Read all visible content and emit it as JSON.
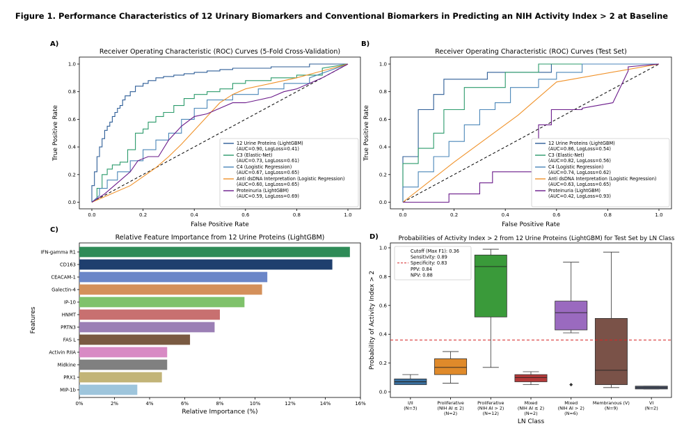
{
  "figure": {
    "title": "Figure 1. Performance Characteristics of 12 Urinary Biomarkers and Conventional Biomarkers in Predicting an NIH Activity Index > 2 at Baseline"
  },
  "chart_data": [
    {
      "type": "line",
      "panel": "A)",
      "title": "Receiver Operating Characteristic (ROC) Curves (5-Fold Cross-Validation)",
      "xlabel": "False Positive Rate",
      "ylabel": "True Positive Rate",
      "xlim": [
        0,
        1
      ],
      "ylim": [
        0,
        1
      ],
      "xticks": [
        "0.0",
        "0.2",
        "0.4",
        "0.6",
        "0.8",
        "1.0"
      ],
      "yticks": [
        "0.0",
        "0.2",
        "0.4",
        "0.6",
        "0.8",
        "1.0"
      ],
      "legend_position": "lower-right",
      "series": [
        {
          "name": "12 Urine Proteins (LightGBM)",
          "legend": [
            "12 Urine Proteins (LightGBM)",
            "(AUC=0.90, LogLoss=0.41)"
          ],
          "color": "#2c5c96",
          "x": [
            0,
            0,
            0.01,
            0.01,
            0.02,
            0.02,
            0.03,
            0.03,
            0.04,
            0.04,
            0.05,
            0.05,
            0.06,
            0.06,
            0.07,
            0.07,
            0.08,
            0.08,
            0.09,
            0.09,
            0.1,
            0.1,
            0.11,
            0.11,
            0.12,
            0.12,
            0.13,
            0.13,
            0.15,
            0.15,
            0.17,
            0.17,
            0.2,
            0.2,
            0.22,
            0.22,
            0.25,
            0.25,
            0.28,
            0.28,
            0.32,
            0.32,
            0.36,
            0.36,
            0.4,
            0.4,
            0.45,
            0.45,
            0.5,
            0.5,
            0.55,
            0.55,
            0.6,
            0.6,
            0.7,
            0.7,
            0.85,
            0.85,
            1.0
          ],
          "y": [
            0,
            0.12,
            0.12,
            0.22,
            0.22,
            0.33,
            0.33,
            0.4,
            0.4,
            0.46,
            0.46,
            0.52,
            0.52,
            0.55,
            0.55,
            0.58,
            0.58,
            0.62,
            0.62,
            0.65,
            0.65,
            0.68,
            0.68,
            0.7,
            0.7,
            0.74,
            0.74,
            0.77,
            0.77,
            0.8,
            0.8,
            0.84,
            0.84,
            0.86,
            0.86,
            0.88,
            0.88,
            0.9,
            0.9,
            0.91,
            0.91,
            0.92,
            0.92,
            0.93,
            0.93,
            0.94,
            0.94,
            0.95,
            0.95,
            0.96,
            0.96,
            0.97,
            0.97,
            0.97,
            0.97,
            0.98,
            0.98,
            1.0,
            1.0
          ]
        },
        {
          "name": "C3 (Elastic-Net)",
          "legend": [
            "C3 (Elastic-Net)",
            "(AUC=0.73, LogLoss=0.61)"
          ],
          "color": "#2a9a6a",
          "x": [
            0,
            0.02,
            0.02,
            0.04,
            0.04,
            0.06,
            0.06,
            0.08,
            0.08,
            0.11,
            0.11,
            0.14,
            0.14,
            0.17,
            0.17,
            0.2,
            0.2,
            0.22,
            0.22,
            0.25,
            0.25,
            0.28,
            0.28,
            0.32,
            0.32,
            0.36,
            0.36,
            0.4,
            0.4,
            0.45,
            0.45,
            0.5,
            0.5,
            0.55,
            0.55,
            0.6,
            0.6,
            0.7,
            0.7,
            0.8,
            0.8,
            0.9,
            0.9,
            1.0
          ],
          "y": [
            0,
            0.02,
            0.1,
            0.1,
            0.2,
            0.2,
            0.24,
            0.24,
            0.27,
            0.27,
            0.29,
            0.29,
            0.38,
            0.38,
            0.5,
            0.5,
            0.53,
            0.53,
            0.58,
            0.58,
            0.62,
            0.62,
            0.65,
            0.65,
            0.7,
            0.7,
            0.75,
            0.75,
            0.78,
            0.78,
            0.8,
            0.8,
            0.82,
            0.82,
            0.86,
            0.86,
            0.88,
            0.88,
            0.9,
            0.9,
            0.92,
            0.92,
            0.97,
            1.0
          ]
        },
        {
          "name": "C4 (Logistic Regression)",
          "legend": [
            "C4 (Logistic Regression)",
            "(AUC=0.67, LogLoss=0.65)"
          ],
          "color": "#4a86b8",
          "x": [
            0,
            0.03,
            0.03,
            0.06,
            0.06,
            0.1,
            0.1,
            0.15,
            0.15,
            0.2,
            0.2,
            0.25,
            0.25,
            0.3,
            0.3,
            0.35,
            0.35,
            0.4,
            0.4,
            0.45,
            0.45,
            0.55,
            0.55,
            0.65,
            0.65,
            0.75,
            0.75,
            0.85,
            0.85,
            1.0
          ],
          "y": [
            0,
            0.05,
            0.1,
            0.1,
            0.16,
            0.16,
            0.22,
            0.22,
            0.3,
            0.3,
            0.38,
            0.38,
            0.45,
            0.45,
            0.5,
            0.5,
            0.6,
            0.6,
            0.68,
            0.68,
            0.74,
            0.74,
            0.78,
            0.78,
            0.82,
            0.82,
            0.86,
            0.86,
            0.9,
            1.0
          ]
        },
        {
          "name": "Anti dsDNA Interpretation (Logistic Regression)",
          "legend": [
            "Anti dsDNA Interpretation (Logistic Regression)",
            "(AUC=0.60, LogLoss=0.65)"
          ],
          "color": "#f0922a",
          "x": [
            0,
            0.05,
            0.15,
            0.25,
            0.3,
            0.35,
            0.4,
            0.45,
            0.5,
            0.55,
            0.6,
            0.7,
            0.8,
            0.9,
            1.0
          ],
          "y": [
            0,
            0.04,
            0.12,
            0.25,
            0.33,
            0.42,
            0.52,
            0.62,
            0.72,
            0.78,
            0.82,
            0.86,
            0.9,
            0.95,
            1.0
          ]
        },
        {
          "name": "Proteinuria (LightGBM)",
          "legend": [
            "Proteinuria (LightGBM)",
            "(AUC=0.59, LogLoss=0.69)"
          ],
          "color": "#6a1a8a",
          "x": [
            0,
            0.05,
            0.1,
            0.15,
            0.18,
            0.22,
            0.26,
            0.3,
            0.35,
            0.4,
            0.45,
            0.5,
            0.55,
            0.6,
            0.65,
            0.7,
            0.75,
            0.8,
            0.85,
            0.9,
            0.95,
            1.0
          ],
          "y": [
            0,
            0.06,
            0.14,
            0.22,
            0.3,
            0.33,
            0.33,
            0.45,
            0.55,
            0.62,
            0.64,
            0.68,
            0.72,
            0.72,
            0.74,
            0.76,
            0.8,
            0.82,
            0.86,
            0.9,
            0.95,
            1.0
          ]
        }
      ]
    },
    {
      "type": "line",
      "panel": "B)",
      "title": "Receiver Operating Characteristic (ROC) Curves (Test Set)",
      "xlabel": "False Positive Rate",
      "ylabel": "True Positive Rate",
      "xlim": [
        0,
        1
      ],
      "ylim": [
        0,
        1
      ],
      "xticks": [
        "0.0",
        "0.2",
        "0.4",
        "0.6",
        "0.8",
        "1.0"
      ],
      "yticks": [
        "0.0",
        "0.2",
        "0.4",
        "0.6",
        "0.8",
        "1.0"
      ],
      "legend_position": "lower-right",
      "series": [
        {
          "name": "12 Urine Proteins (LightGBM)",
          "legend": [
            "12 Urine Proteins (LightGBM)",
            "(AUC=0.86, LogLoss=0.54)"
          ],
          "color": "#2c5c96",
          "x": [
            0,
            0,
            0.06,
            0.06,
            0.12,
            0.12,
            0.16,
            0.16,
            0.33,
            0.33,
            0.42,
            0.42,
            0.58,
            0.58,
            1.0
          ],
          "y": [
            0,
            0.33,
            0.33,
            0.67,
            0.67,
            0.78,
            0.78,
            0.89,
            0.89,
            0.94,
            0.94,
            0.94,
            0.94,
            1.0,
            1.0
          ]
        },
        {
          "name": "C3 (Elastic-Net)",
          "legend": [
            "C3 (Elastic-Net)",
            "(AUC=0.82, LogLoss=0.56)"
          ],
          "color": "#2a9a6a",
          "x": [
            0,
            0,
            0.06,
            0.06,
            0.12,
            0.12,
            0.16,
            0.16,
            0.24,
            0.24,
            0.3,
            0.3,
            0.4,
            0.4,
            0.53,
            0.53,
            0.65,
            0.65,
            1.0
          ],
          "y": [
            0,
            0.28,
            0.28,
            0.39,
            0.39,
            0.5,
            0.5,
            0.67,
            0.67,
            0.83,
            0.83,
            0.83,
            0.83,
            0.94,
            0.94,
            1.0,
            1.0,
            1.0,
            1.0
          ]
        },
        {
          "name": "C4 (Logistic Regression)",
          "legend": [
            "C4 (Logistic Regression)",
            "(AUC=0.74, LogLoss=0.62)"
          ],
          "color": "#4a86b8",
          "x": [
            0,
            0,
            0.06,
            0.06,
            0.12,
            0.12,
            0.18,
            0.18,
            0.24,
            0.24,
            0.3,
            0.3,
            0.36,
            0.36,
            0.42,
            0.42,
            0.53,
            0.53,
            0.6,
            0.6,
            0.7,
            0.7,
            1.0
          ],
          "y": [
            0,
            0.11,
            0.11,
            0.22,
            0.22,
            0.33,
            0.33,
            0.44,
            0.44,
            0.56,
            0.56,
            0.67,
            0.67,
            0.72,
            0.72,
            0.83,
            0.83,
            0.89,
            0.89,
            0.94,
            0.94,
            1.0,
            1.0
          ]
        },
        {
          "name": "Anti dsDNA Interpretation (Logistic Regression)",
          "legend": [
            "Anti dsDNA Interpretation (Logistic Regression)",
            "(AUC=0.63, LogLoss=0.65)"
          ],
          "color": "#f0922a",
          "x": [
            0,
            0.2,
            0.45,
            0.6,
            1.0
          ],
          "y": [
            0,
            0.29,
            0.63,
            0.87,
            1.0
          ]
        },
        {
          "name": "Proteinuria (LightGBM)",
          "legend": [
            "Proteinuria (LightGBM)",
            "(AUC=0.42, LogLoss=0.93)"
          ],
          "color": "#6a1a8a",
          "x": [
            0,
            0.18,
            0.18,
            0.2,
            0.3,
            0.3,
            0.35,
            0.35,
            0.42,
            0.42,
            0.53,
            0.53,
            0.58,
            0.58,
            0.7,
            0.7,
            0.82,
            0.82,
            0.88,
            0.88,
            1.0
          ],
          "y": [
            0,
            0,
            0.06,
            0.06,
            0.06,
            0.14,
            0.14,
            0.22,
            0.22,
            0.22,
            0.22,
            0.56,
            0.56,
            0.67,
            0.67,
            0.68,
            0.72,
            0.72,
            0.95,
            0.98,
            1.0
          ]
        }
      ]
    },
    {
      "type": "bar",
      "orientation": "horizontal",
      "panel": "C)",
      "title": "Relative Feature Importance from 12 Urine Proteins (LightGBM)",
      "xlabel": "Relative Importance (%)",
      "ylabel": "Features",
      "xlim": [
        0,
        16
      ],
      "xticks": [
        "0%",
        "2%",
        "4%",
        "6%",
        "8%",
        "10%",
        "12%",
        "14%",
        "16%"
      ],
      "categories": [
        "IFN-gamma R1",
        "CD163",
        "CEACAM-1",
        "Galectin-4",
        "IP-10",
        "HNMT",
        "PRTN3",
        "FAS L",
        "Activin RIIA",
        "Midkine",
        "PRX1",
        "MIP-1b"
      ],
      "values": [
        15.4,
        14.4,
        10.7,
        10.4,
        9.4,
        8.0,
        7.7,
        6.3,
        5.0,
        5.0,
        4.7,
        3.3
      ],
      "colors": [
        "#2e8b57",
        "#1f3f6e",
        "#6b86c8",
        "#d4905a",
        "#7fc26b",
        "#c87070",
        "#9b7fb5",
        "#7a5a42",
        "#d88ac4",
        "#808080",
        "#c2b478",
        "#9ec5dc"
      ]
    },
    {
      "type": "box",
      "panel": "D)",
      "title": "Probabilities of Activity Index > 2 from 12 Urine Proteins (LightGBM) for Test Set by LN Class",
      "xlabel": "LN Class",
      "ylabel": "Probability of Activity Index > 2",
      "ylim": [
        0,
        1
      ],
      "yticks": [
        "0.0",
        "0.2",
        "0.4",
        "0.6",
        "0.8",
        "1.0"
      ],
      "cutoff_value": 0.36,
      "annotation": [
        "Cutoff (Max F1): 0.36",
        "Sensitivity: 0.89",
        "Specificity: 0.83",
        "PPV: 0.84",
        "NPV: 0.88"
      ],
      "categories": [
        [
          "I/II",
          "(N=3)"
        ],
        [
          "Proliferative",
          "(NIH AI ≤ 2)",
          "(N=2)"
        ],
        [
          "Proliferative",
          "(NIH AI > 2)",
          "(N=12)"
        ],
        [
          "Mixed",
          "(NIH AI ≤ 2)",
          "(N=2)"
        ],
        [
          "Mixed",
          "(NIH AI > 2)",
          "(N=6)"
        ],
        [
          "Membranous (V)",
          "(N=9)"
        ],
        [
          "VI",
          "(N=2)"
        ]
      ],
      "boxes": [
        {
          "min": 0.05,
          "q1": 0.05,
          "median": 0.07,
          "q3": 0.09,
          "max": 0.12,
          "outliers": [],
          "color": "#3a6f9e"
        },
        {
          "min": 0.06,
          "q1": 0.12,
          "median": 0.17,
          "q3": 0.23,
          "max": 0.28,
          "outliers": [],
          "color": "#e08a2a"
        },
        {
          "min": 0.17,
          "q1": 0.52,
          "median": 0.87,
          "q3": 0.95,
          "max": 0.99,
          "outliers": [],
          "color": "#3a9a3a"
        },
        {
          "min": 0.05,
          "q1": 0.07,
          "median": 0.1,
          "q3": 0.12,
          "max": 0.14,
          "outliers": [],
          "color": "#b43a3a"
        },
        {
          "min": 0.41,
          "q1": 0.43,
          "median": 0.55,
          "q3": 0.63,
          "max": 0.9,
          "outliers": [
            0.05
          ],
          "color": "#9a6abf"
        },
        {
          "min": 0.03,
          "q1": 0.05,
          "median": 0.15,
          "q3": 0.51,
          "max": 0.97,
          "outliers": [],
          "color": "#7a5248"
        },
        {
          "min": 0.02,
          "q1": 0.02,
          "median": 0.03,
          "q3": 0.04,
          "max": 0.04,
          "outliers": [],
          "color": "#505a70"
        }
      ]
    }
  ]
}
